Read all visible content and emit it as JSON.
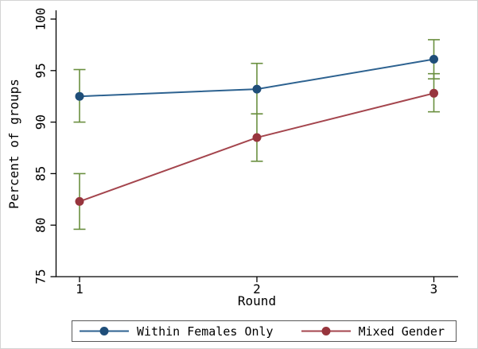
{
  "chart_data": {
    "type": "line",
    "title": "",
    "xlabel": "Round",
    "ylabel": "Percent of groups",
    "x": [
      1,
      2,
      3
    ],
    "xticks": [
      "1",
      "2",
      "3"
    ],
    "yticks": [
      75,
      80,
      85,
      90,
      95,
      100
    ],
    "ylim": [
      75,
      100
    ],
    "grid": false,
    "legend_position": "bottom",
    "axis_color": "#000000",
    "error_bar_color": "#6a8f3f",
    "series": [
      {
        "name": "Within Females Only",
        "color": "#2d6290",
        "marker_color": "#1f4e79",
        "values": [
          92.5,
          93.2,
          96.1
        ],
        "ci_low": [
          90.0,
          90.8,
          94.2
        ],
        "ci_high": [
          95.1,
          95.7,
          98.0
        ]
      },
      {
        "name": "Mixed Gender",
        "color": "#a4454d",
        "marker_color": "#97353d",
        "values": [
          82.3,
          88.5,
          92.8
        ],
        "ci_low": [
          79.6,
          86.2,
          91.0
        ],
        "ci_high": [
          85.0,
          90.8,
          94.7
        ]
      }
    ]
  }
}
